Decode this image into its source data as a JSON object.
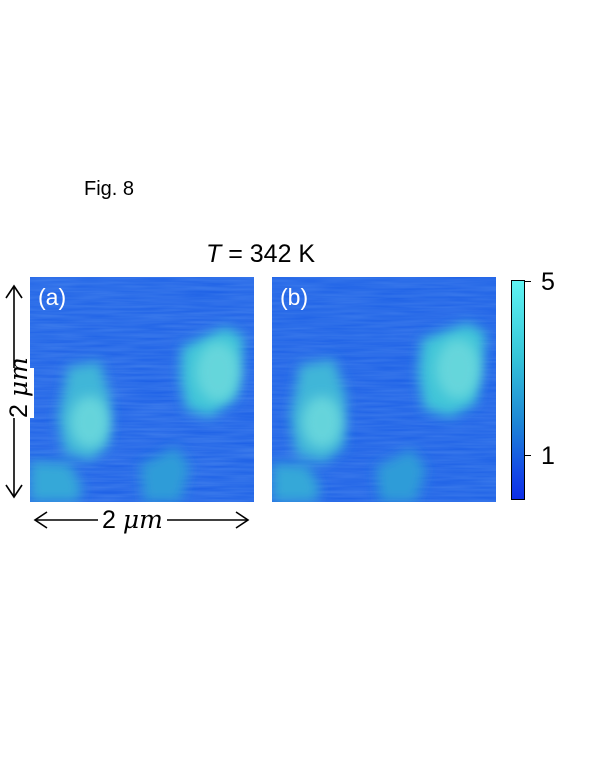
{
  "figure": {
    "label": "Fig. 8",
    "title_variable": "T",
    "title_rest": " = 342 K"
  },
  "panels": [
    {
      "tag": "(a)"
    },
    {
      "tag": "(b)"
    }
  ],
  "scale": {
    "horizontal_number": "2 ",
    "horizontal_unit": "μm",
    "vertical_number": "2 ",
    "vertical_unit": "μm"
  },
  "colorbar": {
    "max_label": "5",
    "tick_label": "1",
    "colors": [
      "#5ff4f2",
      "#35c4d8",
      "#1d86d6",
      "#1449e6",
      "#0d2ee8"
    ]
  }
}
